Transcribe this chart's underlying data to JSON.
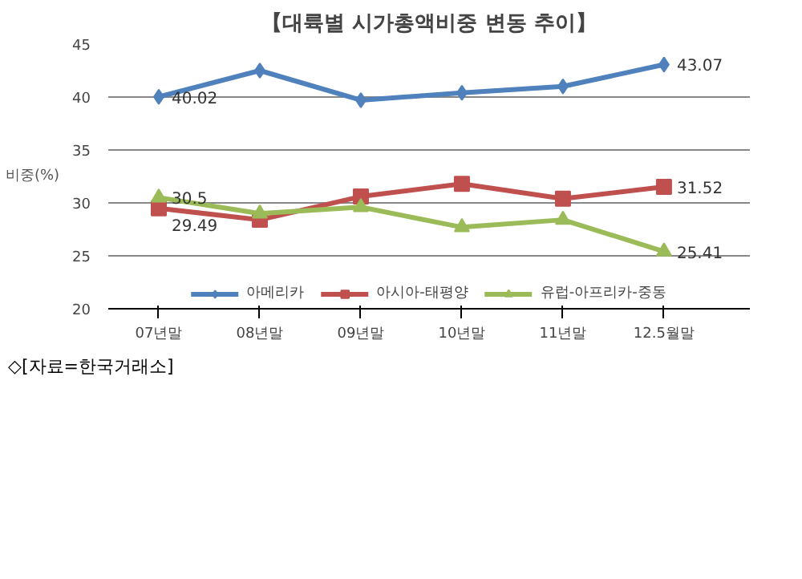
{
  "chart_data": {
    "type": "line",
    "title": "【대륙별 시가총액비중 변동 추이】",
    "ylabel": "비중(%)",
    "annotations": [
      "◇[자료=한국거래소]"
    ],
    "categories": [
      "07년말",
      "08년말",
      "09년말",
      "10년말",
      "11년말",
      "12.5월말"
    ],
    "series": [
      {
        "name": "아메리카",
        "color": "#4f81bd",
        "marker": "diamond",
        "values": [
          40.02,
          42.5,
          39.7,
          40.4,
          41.0,
          43.07
        ],
        "value_labels": [
          "40.02",
          null,
          null,
          null,
          null,
          "43.07"
        ]
      },
      {
        "name": "아시아-태평양",
        "color": "#c0504d",
        "marker": "square",
        "values": [
          29.49,
          28.4,
          30.6,
          31.8,
          30.4,
          31.52
        ],
        "value_labels": [
          "29.49",
          null,
          null,
          null,
          null,
          "31.52"
        ]
      },
      {
        "name": "유럽-아프리카-중동",
        "color": "#9bbb59",
        "marker": "triangle",
        "values": [
          30.5,
          29.0,
          29.6,
          27.7,
          28.4,
          25.41
        ],
        "value_labels": [
          "30.5",
          null,
          null,
          null,
          null,
          "25.41"
        ]
      }
    ],
    "ylim": [
      20,
      45
    ],
    "yticks": [
      20,
      25,
      30,
      35,
      40,
      45
    ],
    "grid": "y",
    "legend": "bottom"
  }
}
